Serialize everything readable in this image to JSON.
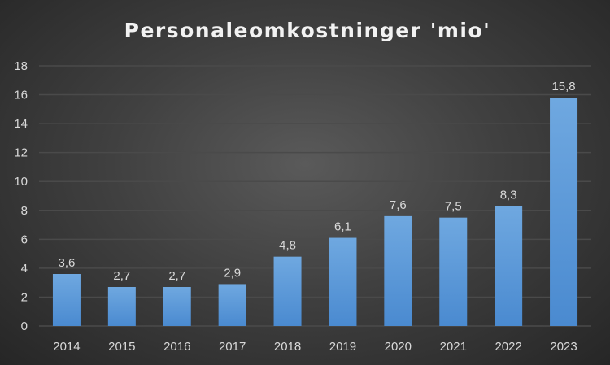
{
  "chart_data": {
    "type": "bar",
    "title": "Personaleomkostninger 'mio'",
    "categories": [
      "2014",
      "2015",
      "2016",
      "2017",
      "2018",
      "2019",
      "2020",
      "2021",
      "2022",
      "2023"
    ],
    "values": [
      3.6,
      2.7,
      2.7,
      2.9,
      4.8,
      6.1,
      7.6,
      7.5,
      8.3,
      15.8
    ],
    "data_labels": [
      "3,6",
      "2,7",
      "2,7",
      "2,9",
      "4,8",
      "6,1",
      "7,6",
      "7,5",
      "8,3",
      "15,8"
    ],
    "yticks": [
      "0",
      "2",
      "4",
      "6",
      "8",
      "10",
      "12",
      "14",
      "16",
      "18"
    ],
    "ylim": [
      0,
      18
    ],
    "xlabel": "",
    "ylabel": "",
    "grid": true,
    "legend": "none",
    "colors": {
      "bar_top": "#6fa8e0",
      "bar_bottom": "#4a8ad0",
      "grid": "#4a4a4a"
    }
  }
}
